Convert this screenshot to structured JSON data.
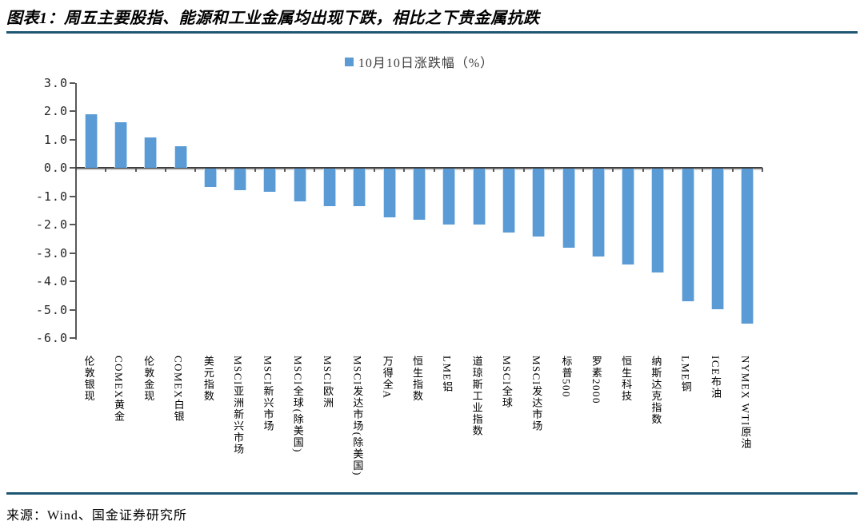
{
  "figure": {
    "title": "图表1：周五主要股指、能源和工业金属均出现下跌，相比之下贵金属抗跌",
    "source": "来源：Wind、国金证券研究所",
    "accent_rule_color": "#1F5673",
    "background_color": "#FFFFFF"
  },
  "chart_data": {
    "type": "bar",
    "title": "",
    "legend": [
      {
        "label": "10月10日涨跌幅（%）",
        "color": "#5B9BD5"
      }
    ],
    "legend_position": "top-center",
    "grid": false,
    "bar_color": "#5B9BD5",
    "xlabel": "",
    "ylabel": "",
    "ylim": [
      -6.0,
      3.0
    ],
    "ytick_labels": [
      "3.0",
      "2.0",
      "1.0",
      "0.0",
      "-1.0",
      "-2.0",
      "-3.0",
      "-4.0",
      "-5.0",
      "-6.0"
    ],
    "ytick_values": [
      3.0,
      2.0,
      1.0,
      0.0,
      -1.0,
      -2.0,
      -3.0,
      -4.0,
      -5.0,
      -6.0
    ],
    "categories": [
      "伦敦银现",
      "COMEX黄金",
      "伦敦金现",
      "COMEX白银",
      "美元指数",
      "MSCI亚洲新兴市场",
      "MSCI新兴市场",
      "MSCI全球(除美国)",
      "MSCI欧洲",
      "MSCI发达市场(除美国)",
      "万得全A",
      "恒生指数",
      "LME铝",
      "道琼斯工业指数",
      "MSCI全球",
      "MSCI发达市场",
      "标普500",
      "罗素2000",
      "恒生科技",
      "纳斯达克指数",
      "LME铜",
      "ICE布油",
      "NYMEX WTI原油"
    ],
    "values": [
      1.89,
      1.61,
      1.09,
      0.78,
      -0.64,
      -0.74,
      -0.82,
      -1.15,
      -1.31,
      -1.33,
      -1.71,
      -1.81,
      -1.96,
      -1.97,
      -2.24,
      -2.4,
      -2.79,
      -3.1,
      -3.38,
      -3.65,
      -4.68,
      -4.95,
      -5.47
    ]
  }
}
